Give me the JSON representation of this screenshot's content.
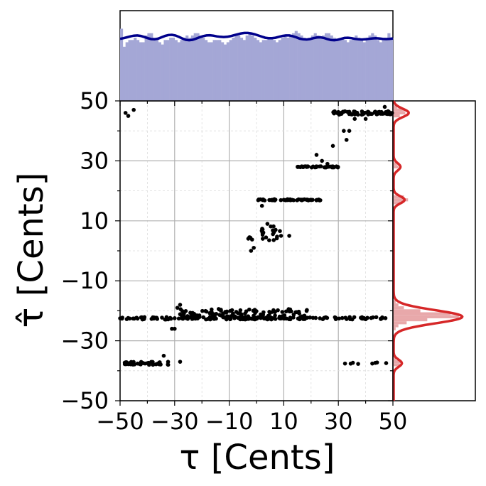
{
  "chart_data": {
    "type": "scatter",
    "title": "",
    "xlabel": "τ [Cents]",
    "ylabel": "τ̂ [Cents]",
    "xlim": [
      -50,
      50
    ],
    "ylim": [
      -50,
      50
    ],
    "grid": true,
    "xticks": [
      -50,
      -30,
      -10,
      10,
      30,
      50
    ],
    "yticks": [
      -50,
      -30,
      -10,
      10,
      30,
      50
    ],
    "xtick_labels": [
      "−50",
      "−30",
      "−10",
      "10",
      "30",
      "50"
    ],
    "ytick_labels": [
      "−50",
      "−30",
      "−10",
      "10",
      "30",
      "50"
    ],
    "clusters": [
      {
        "y": -22.5,
        "x_range": [
          -50,
          50
        ],
        "count": 170,
        "y_jitter": 0.4
      },
      {
        "y": -21,
        "x_range": [
          -28,
          20
        ],
        "count": 120,
        "y_jitter": 1.6
      },
      {
        "y": -37.5,
        "x_range": [
          -50,
          -32
        ],
        "count": 40,
        "y_jitter": 0.5
      },
      {
        "y": -37.5,
        "x_range": [
          32,
          50
        ],
        "count": 8,
        "y_jitter": 0.3
      },
      {
        "y": 17,
        "x_range": [
          0,
          24
        ],
        "count": 55,
        "y_jitter": 0.2
      },
      {
        "y": 28,
        "x_range": [
          15,
          30
        ],
        "count": 40,
        "y_jitter": 0.2
      },
      {
        "y": 46,
        "x_range": [
          28,
          50
        ],
        "count": 70,
        "y_jitter": 0.6
      },
      {
        "y": 6,
        "x_range": [
          -4,
          9
        ],
        "count": 22,
        "y_jitter": 2.5
      }
    ],
    "extra_points": [
      [
        -48,
        46
      ],
      [
        -47,
        45
      ],
      [
        -45,
        47
      ],
      [
        -28,
        -37
      ],
      [
        -34,
        -35
      ],
      [
        -30,
        -26
      ],
      [
        -31,
        -26
      ],
      [
        -29,
        -19
      ],
      [
        -28,
        -18
      ],
      [
        2,
        15
      ],
      [
        4,
        9
      ],
      [
        7,
        7
      ],
      [
        9,
        5
      ],
      [
        12,
        5
      ],
      [
        -1,
        1
      ],
      [
        -2,
        0
      ],
      [
        22,
        32
      ],
      [
        24,
        30
      ],
      [
        26,
        29
      ],
      [
        28,
        35
      ],
      [
        32,
        40
      ],
      [
        33,
        37
      ],
      [
        34,
        40
      ],
      [
        36,
        44
      ],
      [
        40,
        44
      ],
      [
        47,
        48
      ]
    ],
    "x_marginal": {
      "type": "histogram",
      "bins": 100,
      "counts": [
        32,
        24,
        26,
        27,
        27,
        28,
        27,
        26,
        26,
        29,
        30,
        30,
        28,
        27,
        26,
        25,
        27,
        27,
        28,
        28,
        27,
        26,
        27,
        28,
        29,
        28,
        29,
        30,
        30,
        29,
        28,
        27,
        26,
        26,
        27,
        27,
        27,
        26,
        25,
        26,
        27,
        28,
        29,
        29,
        28,
        27,
        29,
        30,
        29,
        28,
        27,
        26,
        27,
        27,
        28,
        28,
        27,
        26,
        27,
        28,
        29,
        28,
        29,
        30,
        31,
        30,
        29,
        28,
        27,
        28,
        29,
        30,
        29,
        28,
        29,
        30,
        30,
        29,
        28,
        27,
        27,
        28,
        27,
        26,
        27,
        28,
        29,
        28,
        27,
        26,
        28,
        29,
        30,
        29,
        27,
        26,
        27,
        28,
        30,
        28
      ],
      "kde": [
        27.5,
        27.8,
        28.2,
        28.6,
        28.9,
        29.0,
        28.8,
        28.3,
        27.8,
        27.4,
        27.3,
        27.6,
        28.2,
        28.8,
        29.2,
        29.3,
        29.0,
        28.4,
        27.7,
        27.1,
        26.9,
        27.1,
        27.6,
        28.2,
        28.7,
        29.0,
        29.1,
        28.9,
        28.6,
        28.4,
        28.3,
        28.4,
        28.7,
        29.1,
        29.5,
        29.9,
        30.1,
        30.1,
        29.9,
        29.5,
        29.0,
        28.5,
        28.0,
        27.8,
        27.8,
        28.0,
        28.4,
        28.8,
        29.0,
        29.0,
        28.7,
        28.2,
        27.6,
        27.3,
        27.2,
        27.4,
        27.8,
        28.1,
        28.2,
        27.9,
        27.4,
        27.0,
        26.9,
        27.1,
        27.5,
        27.9,
        28.0,
        27.8,
        27.5,
        27.3,
        27.2,
        27.3,
        27.5,
        27.7,
        27.8,
        27.7,
        27.5,
        27.4,
        27.5,
        27.7
      ],
      "ylim": [
        0,
        40
      ],
      "bar_color": "#a4a7d6",
      "kde_color": "#00008b"
    },
    "y_marginal": {
      "type": "histogram",
      "bins": [
        {
          "y": -49,
          "count": 1
        },
        {
          "y": -48,
          "count": 0
        },
        {
          "y": -44,
          "count": 0
        },
        {
          "y": -38,
          "count": 5
        },
        {
          "y": -37,
          "count": 6
        },
        {
          "y": -36,
          "count": 2
        },
        {
          "y": -26,
          "count": 2
        },
        {
          "y": -25,
          "count": 4
        },
        {
          "y": -24,
          "count": 10
        },
        {
          "y": -23,
          "count": 25
        },
        {
          "y": -22,
          "count": 48
        },
        {
          "y": -21,
          "count": 42
        },
        {
          "y": -20,
          "count": 20
        },
        {
          "y": -19,
          "count": 8
        },
        {
          "y": -18,
          "count": 4
        },
        {
          "y": -17,
          "count": 2
        },
        {
          "y": 16,
          "count": 6
        },
        {
          "y": 17,
          "count": 11
        },
        {
          "y": 18,
          "count": 8
        },
        {
          "y": 28,
          "count": 4
        },
        {
          "y": 29,
          "count": 3
        },
        {
          "y": 45,
          "count": 5
        },
        {
          "y": 46,
          "count": 9
        },
        {
          "y": 47,
          "count": 8
        },
        {
          "y": 48,
          "count": 3
        }
      ],
      "kde_peaks": [
        {
          "y": -22,
          "height": 50,
          "width": 2.2
        },
        {
          "y": -37.5,
          "height": 6,
          "width": 1.2
        },
        {
          "y": 17,
          "height": 8,
          "width": 1.2
        },
        {
          "y": 28,
          "height": 5,
          "width": 1.2
        },
        {
          "y": 46,
          "height": 11,
          "width": 1.4
        }
      ],
      "xlim": [
        0,
        60
      ],
      "bar_color": "#e8a8aa",
      "kde_color": "#d62728"
    }
  }
}
